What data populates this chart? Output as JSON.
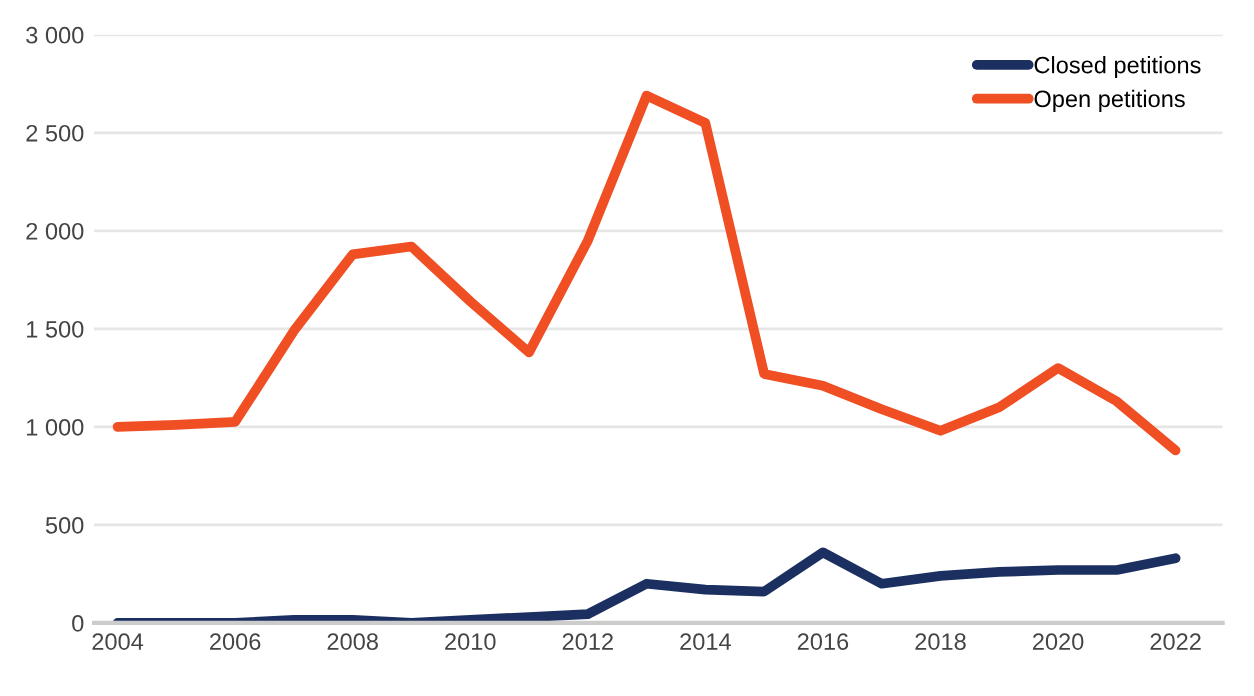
{
  "chart_data": {
    "type": "line",
    "x": [
      2004,
      2005,
      2006,
      2007,
      2008,
      2009,
      2010,
      2011,
      2012,
      2013,
      2014,
      2015,
      2016,
      2017,
      2018,
      2019,
      2020,
      2021,
      2022
    ],
    "series": [
      {
        "name": "Closed petitions",
        "color": "#1b3060",
        "values": [
          0,
          0,
          0,
          15,
          15,
          0,
          15,
          30,
          45,
          200,
          170,
          160,
          360,
          200,
          240,
          260,
          270,
          270,
          330
        ]
      },
      {
        "name": "Open petitions",
        "color": "#f04e23",
        "values": [
          1000,
          1010,
          1025,
          1490,
          1880,
          1920,
          1640,
          1380,
          1950,
          2690,
          2550,
          1270,
          1210,
          1090,
          980,
          1100,
          1300,
          1130,
          880
        ]
      }
    ],
    "xlim": [
      2003.6,
      2022.8
    ],
    "xticks": [
      2004,
      2006,
      2008,
      2010,
      2012,
      2014,
      2016,
      2018,
      2020,
      2022
    ],
    "ylim": [
      0,
      3000
    ],
    "yticks": [
      0,
      500,
      {
        "value": 1000,
        "label": "1 000"
      },
      {
        "value": 1500,
        "label": "1 500"
      },
      {
        "value": 2000,
        "label": "2 000"
      },
      {
        "value": 2500,
        "label": "2 500"
      },
      {
        "value": 3000,
        "label": "3 000"
      }
    ],
    "grid": "y",
    "legend": "top right",
    "marker": "none",
    "line_style": "solid"
  }
}
